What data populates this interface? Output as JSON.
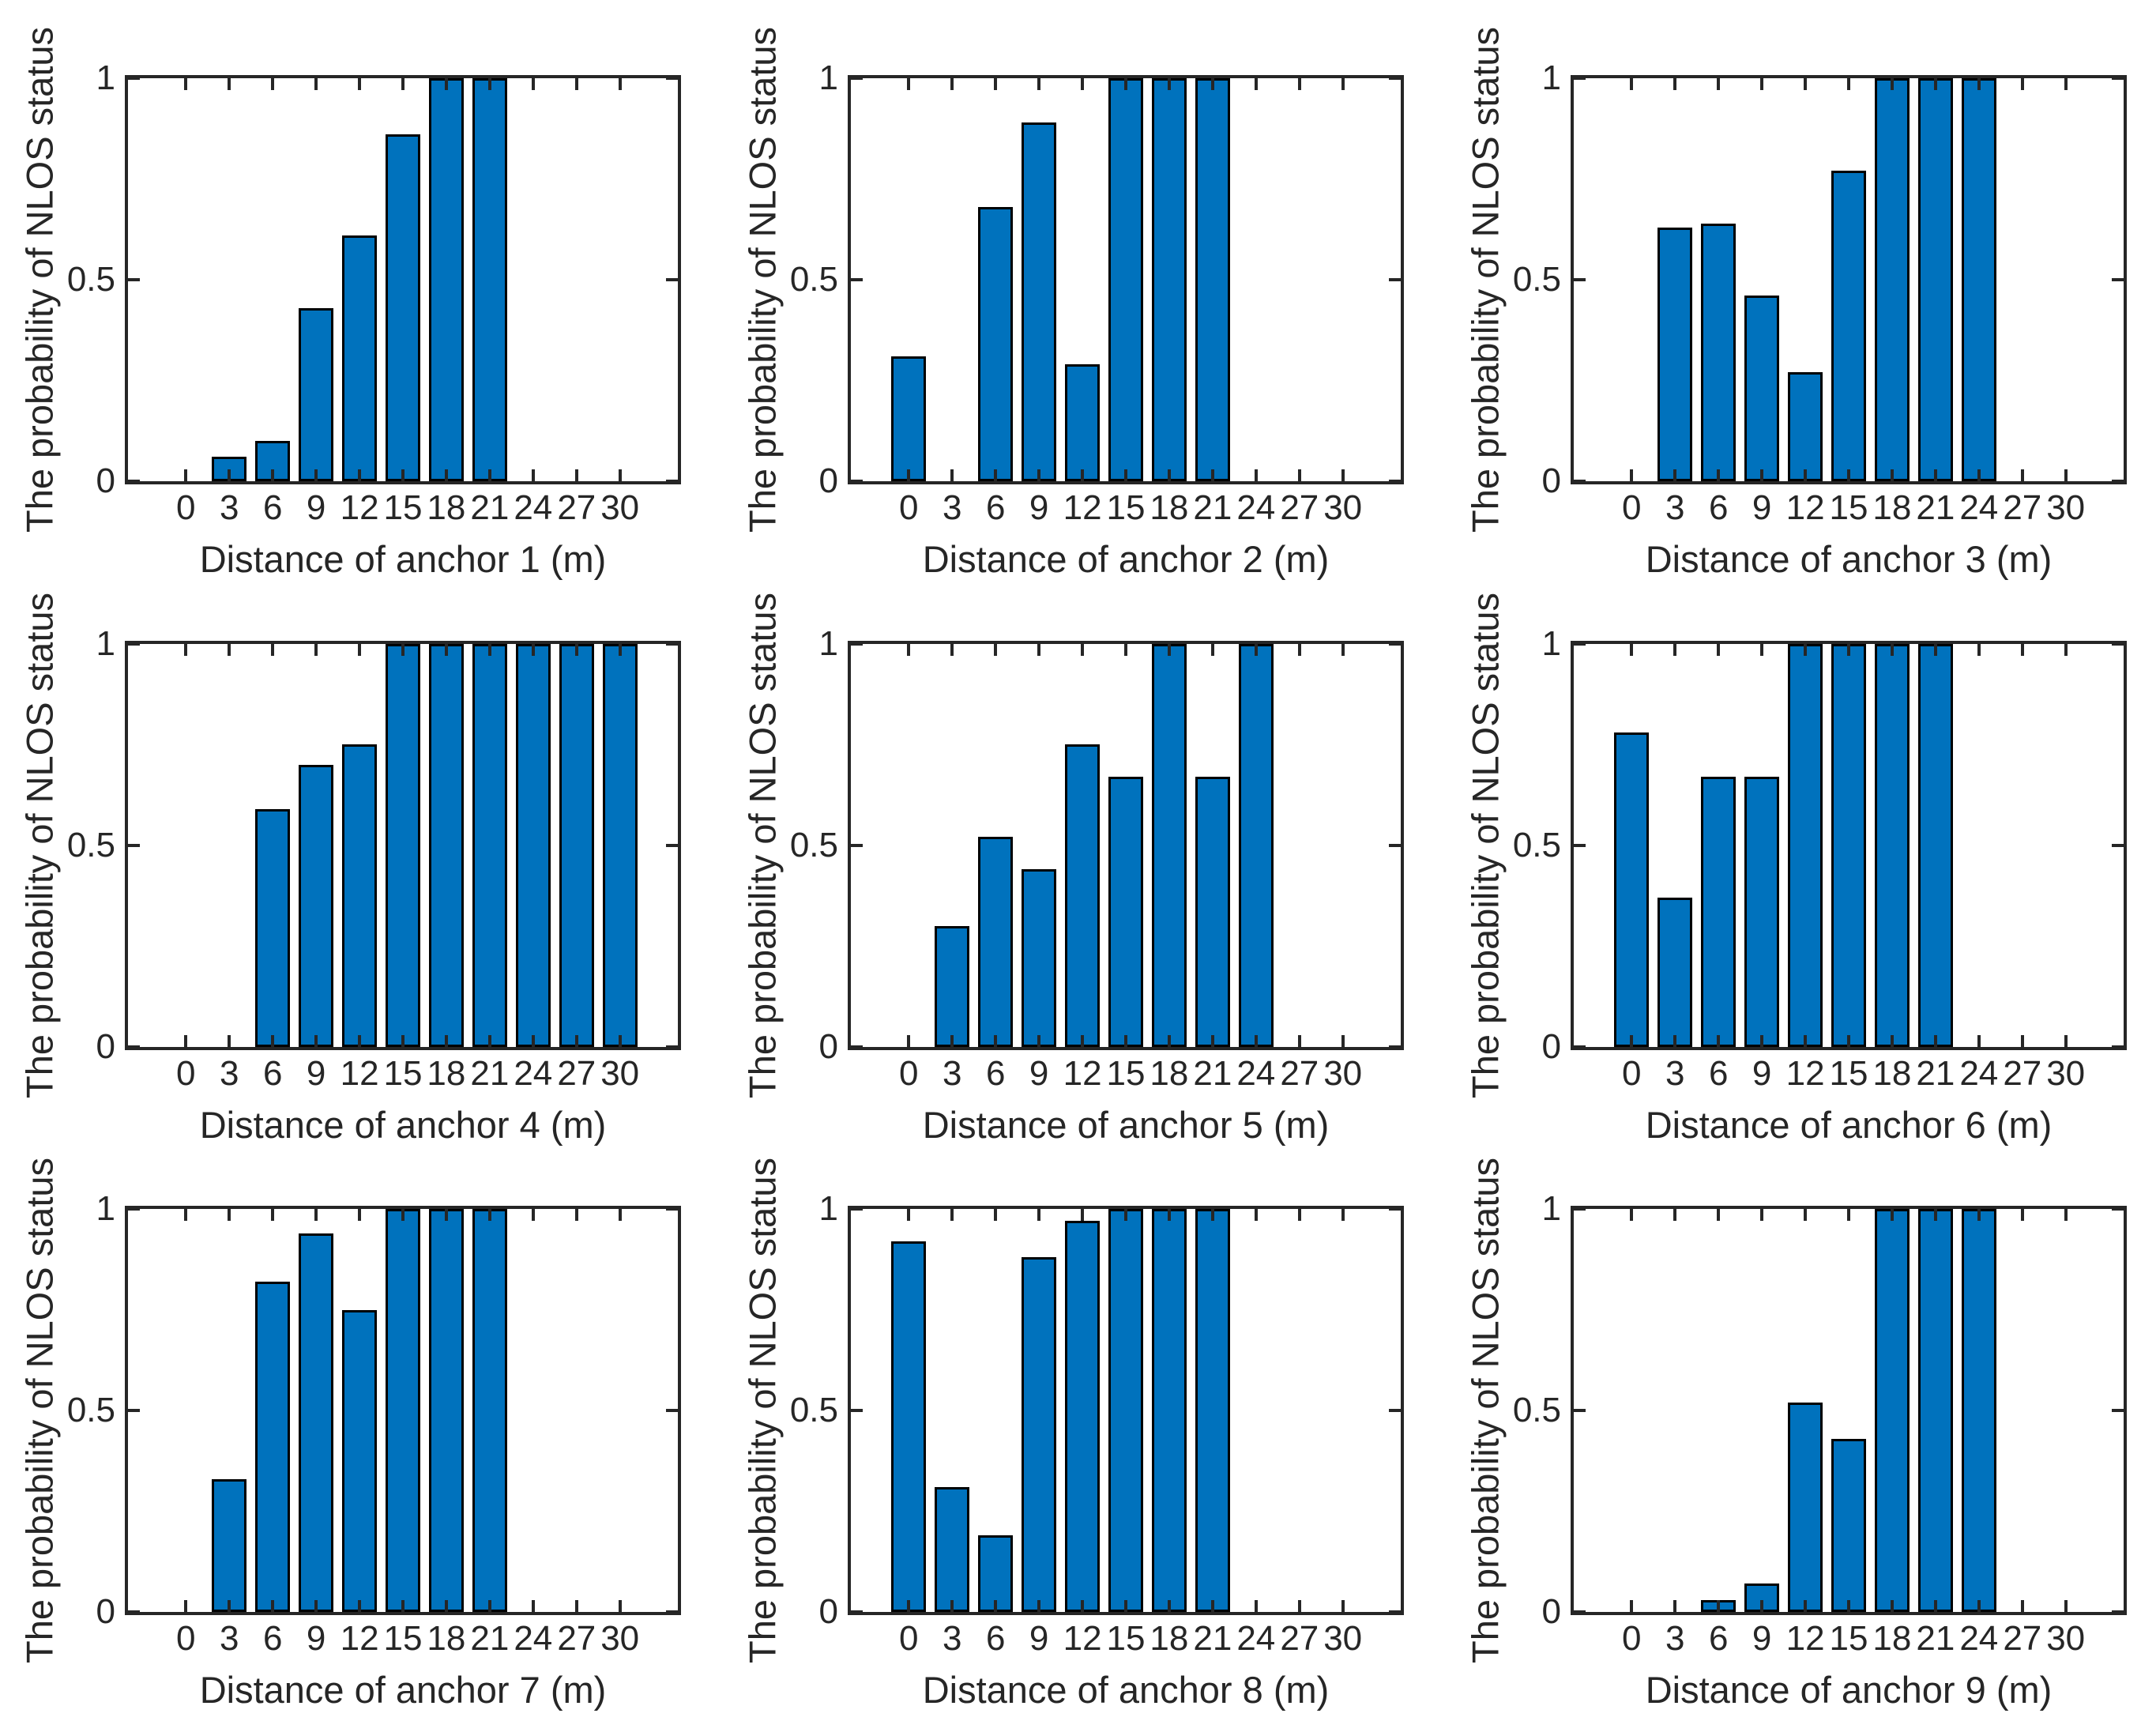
{
  "figure": {
    "background": "#FFFFFF",
    "rows": 3,
    "cols": 3,
    "description": "3x3 grid of MATLAB-style bar charts of NLOS probability vs anchor distance"
  },
  "colors": {
    "bar_fill": "#0072BD",
    "bar_edge": "#000000",
    "axis": "#262626",
    "text": "#262626",
    "background": "#FFFFFF"
  },
  "axes_defaults": {
    "ylabel": "The probability of NLOS status",
    "xticks": [
      0,
      3,
      6,
      9,
      12,
      15,
      18,
      21,
      24,
      27,
      30
    ],
    "yticks": [
      0,
      0.5,
      1
    ],
    "ytick_labels": [
      "0",
      "0.5",
      "1"
    ],
    "ylim": [
      0,
      1
    ],
    "xlim": [
      -4,
      34
    ],
    "bar_width": 2.4,
    "grid": false,
    "legend": null
  },
  "chart_data": [
    {
      "type": "bar",
      "xlabel": "Distance of anchor 1 (m)",
      "ylabel": "The probability of NLOS status",
      "categories": [
        0,
        3,
        6,
        9,
        12,
        15,
        18,
        21,
        24,
        27,
        30
      ],
      "values": [
        0,
        0.06,
        0.1,
        0.43,
        0.61,
        0.86,
        1,
        1,
        0,
        0,
        0
      ],
      "ylim": [
        0,
        1
      ],
      "yticks": [
        0,
        0.5,
        1
      ]
    },
    {
      "type": "bar",
      "xlabel": "Distance of anchor 2 (m)",
      "ylabel": "The probability of NLOS status",
      "categories": [
        0,
        3,
        6,
        9,
        12,
        15,
        18,
        21,
        24,
        27,
        30
      ],
      "values": [
        0.31,
        0,
        0.68,
        0.89,
        0.29,
        1,
        1,
        1,
        0,
        0,
        0
      ],
      "ylim": [
        0,
        1
      ],
      "yticks": [
        0,
        0.5,
        1
      ]
    },
    {
      "type": "bar",
      "xlabel": "Distance of anchor 3 (m)",
      "ylabel": "The probability of NLOS status",
      "categories": [
        0,
        3,
        6,
        9,
        12,
        15,
        18,
        21,
        24,
        27,
        30
      ],
      "values": [
        0,
        0.63,
        0.64,
        0.46,
        0.27,
        0.77,
        1,
        1,
        1,
        0,
        0
      ],
      "ylim": [
        0,
        1
      ],
      "yticks": [
        0,
        0.5,
        1
      ]
    },
    {
      "type": "bar",
      "xlabel": "Distance of anchor 4 (m)",
      "ylabel": "The probability of NLOS status",
      "categories": [
        0,
        3,
        6,
        9,
        12,
        15,
        18,
        21,
        24,
        27,
        30
      ],
      "values": [
        0,
        0,
        0.59,
        0.7,
        0.75,
        1,
        1,
        1,
        1,
        1,
        1
      ],
      "ylim": [
        0,
        1
      ],
      "yticks": [
        0,
        0.5,
        1
      ]
    },
    {
      "type": "bar",
      "xlabel": "Distance of anchor 5 (m)",
      "ylabel": "The probability of NLOS status",
      "categories": [
        0,
        3,
        6,
        9,
        12,
        15,
        18,
        21,
        24,
        27,
        30
      ],
      "values": [
        0,
        0.3,
        0.52,
        0.44,
        0.75,
        0.67,
        1,
        0.67,
        1,
        0,
        0
      ],
      "ylim": [
        0,
        1
      ],
      "yticks": [
        0,
        0.5,
        1
      ]
    },
    {
      "type": "bar",
      "xlabel": "Distance of anchor 6 (m)",
      "ylabel": "The probability of NLOS status",
      "categories": [
        0,
        3,
        6,
        9,
        12,
        15,
        18,
        21,
        24,
        27,
        30
      ],
      "values": [
        0.78,
        0.37,
        0.67,
        0.67,
        1,
        1,
        1,
        1,
        0,
        0,
        0
      ],
      "ylim": [
        0,
        1
      ],
      "yticks": [
        0,
        0.5,
        1
      ]
    },
    {
      "type": "bar",
      "xlabel": "Distance of anchor 7 (m)",
      "ylabel": "The probability of NLOS status",
      "categories": [
        0,
        3,
        6,
        9,
        12,
        15,
        18,
        21,
        24,
        27,
        30
      ],
      "values": [
        0,
        0.33,
        0.82,
        0.94,
        0.75,
        1,
        1,
        1,
        0,
        0,
        0
      ],
      "ylim": [
        0,
        1
      ],
      "yticks": [
        0,
        0.5,
        1
      ]
    },
    {
      "type": "bar",
      "xlabel": "Distance of anchor 8 (m)",
      "ylabel": "The probability of NLOS status",
      "categories": [
        0,
        3,
        6,
        9,
        12,
        15,
        18,
        21,
        24,
        27,
        30
      ],
      "values": [
        0.92,
        0.31,
        0.19,
        0.88,
        0.97,
        1,
        1,
        1,
        0,
        0,
        0
      ],
      "ylim": [
        0,
        1
      ],
      "yticks": [
        0,
        0.5,
        1
      ]
    },
    {
      "type": "bar",
      "xlabel": "Distance of anchor 9 (m)",
      "ylabel": "The probability of NLOS status",
      "categories": [
        0,
        3,
        6,
        9,
        12,
        15,
        18,
        21,
        24,
        27,
        30
      ],
      "values": [
        0,
        0,
        0.03,
        0.07,
        0.52,
        0.43,
        1,
        1,
        1,
        0,
        0
      ],
      "ylim": [
        0,
        1
      ],
      "yticks": [
        0,
        0.5,
        1
      ]
    }
  ]
}
